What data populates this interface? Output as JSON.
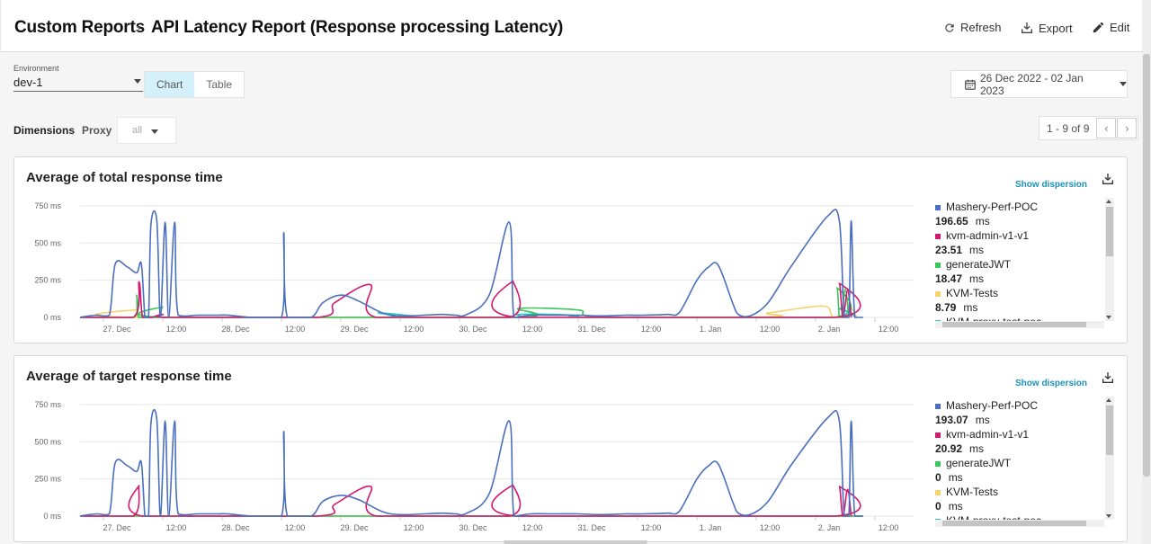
{
  "header": {
    "breadcrumb_root": "Custom Reports",
    "breadcrumb_sep": "›",
    "title": "API Latency Report (Response processing Latency)",
    "refresh_label": "Refresh",
    "export_label": "Export",
    "edit_label": "Edit"
  },
  "filters": {
    "environment_label": "Environment",
    "environment_value": "dev-1",
    "view_chart": "Chart",
    "view_table": "Table",
    "date_range": "26 Dec 2022 - 02 Jan 2023",
    "dimensions_label": "Dimensions",
    "proxy_label": "Proxy",
    "proxy_value": "all",
    "pager_text": "1 - 9 of 9"
  },
  "colors": {
    "Mashery-Perf-POC": "#4a6fbf",
    "kvm-admin-v1-v1": "#d4176f",
    "generateJWT": "#3cc65a",
    "KVM-Tests": "#f5d26b",
    "KVM-proxy-test-poc": "#2ec4c4"
  },
  "charts": [
    {
      "title": "Average of total response time",
      "show_dispersion": "Show dispersion",
      "legend": [
        {
          "name": "Mashery-Perf-POC",
          "value": "196.65",
          "unit": "ms"
        },
        {
          "name": "kvm-admin-v1-v1",
          "value": "23.51",
          "unit": "ms"
        },
        {
          "name": "generateJWT",
          "value": "18.47",
          "unit": "ms"
        },
        {
          "name": "KVM-Tests",
          "value": "8.79",
          "unit": "ms"
        },
        {
          "name": "KVM-proxy-test-poc",
          "value": "",
          "unit": ""
        }
      ]
    },
    {
      "title": "Average of target response time",
      "show_dispersion": "Show dispersion",
      "legend": [
        {
          "name": "Mashery-Perf-POC",
          "value": "193.07",
          "unit": "ms"
        },
        {
          "name": "kvm-admin-v1-v1",
          "value": "20.92",
          "unit": "ms"
        },
        {
          "name": "generateJWT",
          "value": "0",
          "unit": "ms"
        },
        {
          "name": "KVM-Tests",
          "value": "0",
          "unit": "ms"
        },
        {
          "name": "KVM-proxy-test-poc",
          "value": "",
          "unit": ""
        }
      ]
    }
  ],
  "chart_data": [
    {
      "type": "line",
      "title": "Average of total response time",
      "ylabel": "",
      "ylim": [
        0,
        750
      ],
      "y_ticks": [
        "750 ms",
        "500 ms",
        "250 ms",
        "0 ms"
      ],
      "x_ticks": [
        "27. Dec",
        "12:00",
        "28. Dec",
        "12:00",
        "29. Dec",
        "12:00",
        "30. Dec",
        "12:00",
        "31. Dec",
        "12:00",
        "1. Jan",
        "12:00",
        "2. Jan",
        "12:00"
      ],
      "x_range_days": [
        26.8,
        33.1
      ],
      "series": [
        {
          "name": "Mashery-Perf-POC",
          "points": [
            [
              26.8,
              0
            ],
            [
              26.88,
              10
            ],
            [
              26.95,
              15
            ],
            [
              27.05,
              15
            ],
            [
              27.1,
              360
            ],
            [
              27.2,
              340
            ],
            [
              27.28,
              300
            ],
            [
              27.32,
              360
            ],
            [
              27.35,
              0
            ],
            [
              27.38,
              0
            ],
            [
              27.4,
              620
            ],
            [
              27.45,
              650
            ],
            [
              27.48,
              0
            ],
            [
              27.52,
              640
            ],
            [
              27.55,
              0
            ],
            [
              27.6,
              640
            ],
            [
              27.63,
              15
            ],
            [
              27.8,
              15
            ],
            [
              27.95,
              15
            ],
            [
              28.05,
              15
            ],
            [
              28.25,
              0
            ],
            [
              28.5,
              0
            ],
            [
              28.52,
              570
            ],
            [
              28.55,
              0
            ],
            [
              28.75,
              0
            ],
            [
              28.85,
              100
            ],
            [
              29.0,
              150
            ],
            [
              29.15,
              110
            ],
            [
              29.35,
              30
            ],
            [
              29.5,
              10
            ],
            [
              29.7,
              15
            ],
            [
              29.85,
              20
            ],
            [
              29.97,
              15
            ],
            [
              30.05,
              15
            ],
            [
              30.25,
              150
            ],
            [
              30.42,
              640
            ],
            [
              30.46,
              0
            ],
            [
              30.6,
              15
            ],
            [
              30.8,
              15
            ],
            [
              31.0,
              15
            ],
            [
              31.2,
              10
            ],
            [
              31.4,
              15
            ],
            [
              31.55,
              15
            ],
            [
              31.75,
              20
            ],
            [
              31.85,
              30
            ],
            [
              32.0,
              250
            ],
            [
              32.1,
              340
            ],
            [
              32.18,
              350
            ],
            [
              32.3,
              100
            ],
            [
              32.35,
              20
            ],
            [
              32.45,
              10
            ],
            [
              32.6,
              100
            ],
            [
              32.8,
              350
            ],
            [
              33.1,
              680
            ],
            [
              33.2,
              650
            ],
            [
              33.24,
              0
            ],
            [
              33.28,
              0
            ],
            [
              33.3,
              650
            ],
            [
              33.33,
              0
            ],
            [
              33.4,
              0
            ]
          ]
        },
        {
          "name": "kvm-admin-v1-v1",
          "points": [
            [
              26.8,
              0
            ],
            [
              27.25,
              0
            ],
            [
              27.3,
              240
            ],
            [
              27.33,
              0
            ],
            [
              27.4,
              0
            ],
            [
              27.5,
              20
            ],
            [
              27.55,
              0
            ],
            [
              28.8,
              0
            ],
            [
              28.95,
              100
            ],
            [
              29.25,
              220
            ],
            [
              29.3,
              0
            ],
            [
              30.42,
              0
            ],
            [
              30.45,
              245
            ],
            [
              30.48,
              0
            ],
            [
              33.17,
              0
            ],
            [
              33.2,
              230
            ],
            [
              33.23,
              0
            ],
            [
              33.27,
              180
            ],
            [
              33.3,
              0
            ]
          ]
        },
        {
          "name": "generateJWT",
          "points": [
            [
              26.8,
              0
            ],
            [
              27.25,
              0
            ],
            [
              27.28,
              150
            ],
            [
              27.3,
              0
            ],
            [
              27.45,
              0
            ],
            [
              27.5,
              70
            ],
            [
              27.52,
              0
            ],
            [
              30.45,
              0
            ],
            [
              30.5,
              60
            ],
            [
              31.0,
              50
            ],
            [
              31.25,
              0
            ],
            [
              33.15,
              0
            ],
            [
              33.18,
              200
            ],
            [
              33.2,
              0
            ],
            [
              33.22,
              0
            ],
            [
              33.25,
              190
            ],
            [
              33.28,
              0
            ]
          ]
        },
        {
          "name": "KVM-Tests",
          "points": [
            [
              26.8,
              0
            ],
            [
              27.25,
              0
            ],
            [
              27.28,
              50
            ],
            [
              27.3,
              0
            ],
            [
              32.25,
              0
            ],
            [
              32.6,
              30
            ],
            [
              32.95,
              70
            ],
            [
              33.1,
              70
            ],
            [
              33.15,
              0
            ],
            [
              33.28,
              0
            ],
            [
              33.3,
              60
            ],
            [
              33.35,
              0
            ]
          ]
        },
        {
          "name": "KVM-proxy-test-poc",
          "points": [
            [
              26.8,
              0
            ],
            [
              29.28,
              0
            ],
            [
              29.32,
              30
            ],
            [
              29.6,
              10
            ],
            [
              29.65,
              0
            ],
            [
              30.45,
              0
            ],
            [
              30.5,
              20
            ],
            [
              30.8,
              20
            ],
            [
              31.0,
              10
            ],
            [
              31.1,
              0
            ],
            [
              33.15,
              0
            ],
            [
              33.2,
              60
            ],
            [
              33.3,
              20
            ],
            [
              33.35,
              0
            ]
          ]
        }
      ]
    },
    {
      "type": "line",
      "title": "Average of target response time",
      "ylabel": "",
      "ylim": [
        0,
        750
      ],
      "y_ticks": [
        "750 ms",
        "500 ms",
        "250 ms",
        "0 ms"
      ],
      "x_ticks": [
        "27. Dec",
        "12:00",
        "28. Dec",
        "12:00",
        "29. Dec",
        "12:00",
        "30. Dec",
        "12:00",
        "31. Dec",
        "12:00",
        "1. Jan",
        "12:00",
        "2. Jan",
        "12:00"
      ],
      "x_range_days": [
        26.8,
        33.1
      ],
      "series": [
        {
          "name": "Mashery-Perf-POC",
          "points": [
            [
              26.8,
              0
            ],
            [
              26.88,
              10
            ],
            [
              26.95,
              15
            ],
            [
              27.05,
              15
            ],
            [
              27.1,
              360
            ],
            [
              27.2,
              340
            ],
            [
              27.28,
              300
            ],
            [
              27.32,
              360
            ],
            [
              27.35,
              0
            ],
            [
              27.38,
              0
            ],
            [
              27.4,
              620
            ],
            [
              27.45,
              650
            ],
            [
              27.48,
              0
            ],
            [
              27.52,
              640
            ],
            [
              27.55,
              0
            ],
            [
              27.6,
              640
            ],
            [
              27.63,
              15
            ],
            [
              27.8,
              15
            ],
            [
              27.95,
              15
            ],
            [
              28.05,
              15
            ],
            [
              28.25,
              0
            ],
            [
              28.5,
              0
            ],
            [
              28.52,
              570
            ],
            [
              28.55,
              0
            ],
            [
              28.75,
              0
            ],
            [
              28.85,
              100
            ],
            [
              29.0,
              140
            ],
            [
              29.15,
              110
            ],
            [
              29.35,
              30
            ],
            [
              29.5,
              10
            ],
            [
              29.7,
              15
            ],
            [
              29.85,
              20
            ],
            [
              29.97,
              15
            ],
            [
              30.05,
              15
            ],
            [
              30.25,
              150
            ],
            [
              30.42,
              640
            ],
            [
              30.46,
              0
            ],
            [
              30.6,
              15
            ],
            [
              30.8,
              15
            ],
            [
              31.0,
              15
            ],
            [
              31.2,
              10
            ],
            [
              31.4,
              15
            ],
            [
              31.55,
              15
            ],
            [
              31.75,
              20
            ],
            [
              31.85,
              30
            ],
            [
              32.0,
              250
            ],
            [
              32.1,
              340
            ],
            [
              32.18,
              350
            ],
            [
              32.3,
              100
            ],
            [
              32.35,
              20
            ],
            [
              32.45,
              10
            ],
            [
              32.6,
              100
            ],
            [
              32.8,
              350
            ],
            [
              33.1,
              660
            ],
            [
              33.2,
              640
            ],
            [
              33.24,
              0
            ],
            [
              33.28,
              0
            ],
            [
              33.3,
              640
            ],
            [
              33.33,
              0
            ],
            [
              33.4,
              0
            ]
          ]
        },
        {
          "name": "kvm-admin-v1-v1",
          "points": [
            [
              26.8,
              0
            ],
            [
              27.25,
              0
            ],
            [
              27.3,
              205
            ],
            [
              27.33,
              0
            ],
            [
              28.8,
              0
            ],
            [
              28.95,
              80
            ],
            [
              29.25,
              200
            ],
            [
              29.3,
              0
            ],
            [
              30.42,
              0
            ],
            [
              30.45,
              210
            ],
            [
              30.48,
              0
            ],
            [
              33.17,
              0
            ],
            [
              33.2,
              200
            ],
            [
              33.23,
              0
            ],
            [
              33.27,
              180
            ],
            [
              33.3,
              0
            ]
          ]
        },
        {
          "name": "generateJWT",
          "points": [
            [
              26.8,
              0
            ],
            [
              33.4,
              0
            ]
          ]
        },
        {
          "name": "KVM-Tests",
          "points": [
            [
              26.8,
              0
            ],
            [
              33.4,
              0
            ]
          ]
        },
        {
          "name": "KVM-proxy-test-poc",
          "points": [
            [
              26.8,
              0
            ],
            [
              33.4,
              0
            ]
          ]
        }
      ]
    }
  ]
}
